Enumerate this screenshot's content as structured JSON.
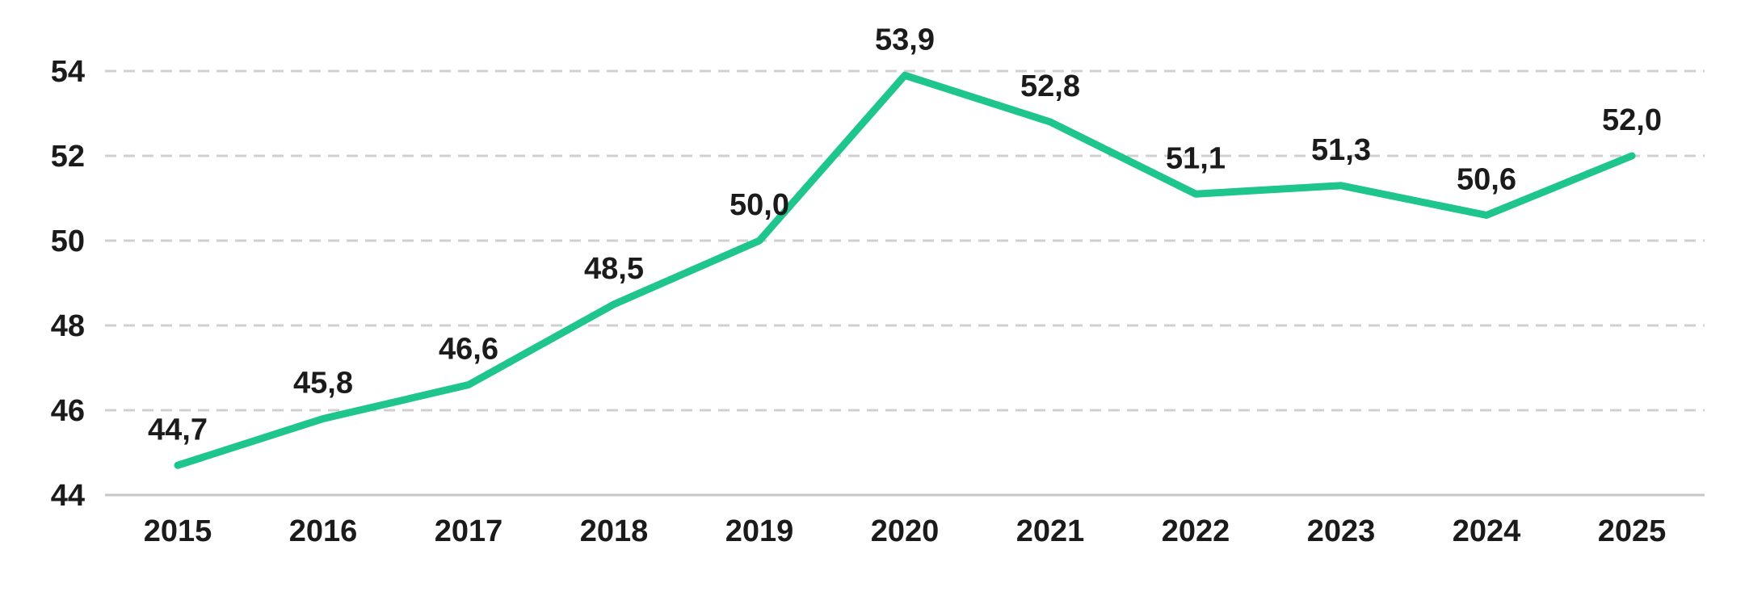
{
  "chart_data": {
    "type": "line",
    "title": "",
    "xlabel": "",
    "ylabel": "",
    "categories": [
      "2015",
      "2016",
      "2017",
      "2018",
      "2019",
      "2020",
      "2021",
      "2022",
      "2023",
      "2024",
      "2025"
    ],
    "values": [
      44.7,
      45.8,
      46.6,
      48.5,
      50.0,
      53.9,
      52.8,
      51.1,
      51.3,
      50.6,
      52.0
    ],
    "value_labels": [
      "44,7",
      "45,8",
      "46,6",
      "48,5",
      "50,0",
      "53,9",
      "52,8",
      "51,1",
      "51,3",
      "50,6",
      "52,0"
    ],
    "y_ticks": [
      44,
      46,
      48,
      50,
      52,
      54
    ],
    "y_tick_labels": [
      "44",
      "46",
      "48",
      "50",
      "52",
      "54"
    ],
    "ylim": [
      44,
      54
    ],
    "grid": "horizontal-dashed",
    "legend": "none",
    "colors": {
      "line": "#1EC58C",
      "gridline": "#D0D0D0",
      "axis_line": "#C6C6C6",
      "text": "#1B1B1B"
    }
  }
}
